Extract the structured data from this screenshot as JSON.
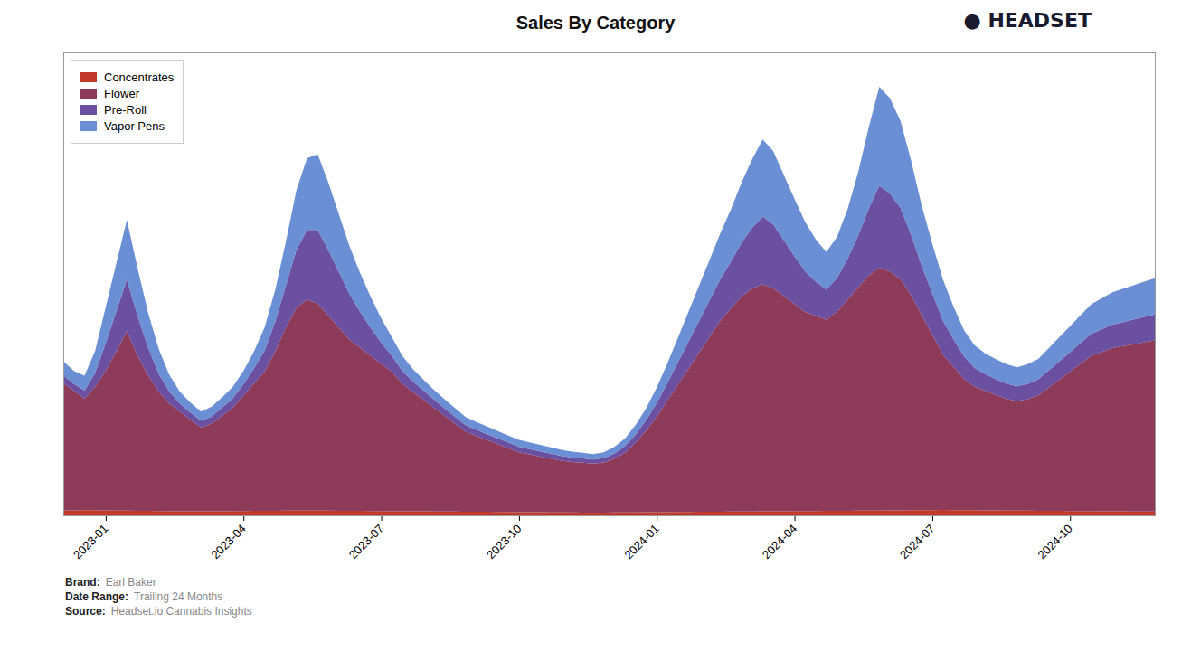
{
  "chart_data": {
    "type": "area",
    "title": "Sales By Category",
    "stacked": true,
    "grid": false,
    "legend": "upper left",
    "tick_labels": "x",
    "ylim": [
      0,
      11622.96
    ],
    "categories": [
      null,
      null,
      null,
      null,
      "2023-01",
      null,
      null,
      null,
      null,
      null,
      null,
      null,
      null,
      null,
      null,
      null,
      null,
      "2023-04",
      null,
      null,
      null,
      null,
      null,
      null,
      null,
      null,
      null,
      null,
      null,
      null,
      "2023-07",
      null,
      null,
      null,
      null,
      null,
      null,
      null,
      null,
      null,
      null,
      null,
      null,
      "2023-10",
      null,
      null,
      null,
      null,
      null,
      null,
      null,
      null,
      null,
      null,
      null,
      null,
      "2024-01",
      null,
      null,
      null,
      null,
      null,
      null,
      null,
      null,
      null,
      null,
      null,
      null,
      "2024-04",
      null,
      null,
      null,
      null,
      null,
      null,
      null,
      null,
      null,
      null,
      null,
      null,
      "2024-07",
      null,
      null,
      null,
      null,
      null,
      null,
      null,
      null,
      null,
      null,
      null,
      null,
      "2024-10",
      null,
      null,
      null,
      null,
      null,
      null,
      null,
      null
    ],
    "series": [
      {
        "name": "Concentrates",
        "color": "#c0392b",
        "values": [
          120,
          125,
          130,
          128,
          125,
          122,
          118,
          115,
          112,
          110,
          108,
          105,
          103,
          100,
          102,
          105,
          107,
          109,
          111,
          113,
          115,
          117,
          118,
          119,
          118,
          117,
          115,
          113,
          111,
          109,
          107,
          105,
          103,
          101,
          100,
          98,
          96,
          94,
          92,
          90,
          88,
          86,
          84,
          82,
          80,
          78,
          76,
          74,
          72,
          70,
          68,
          70,
          72,
          74,
          76,
          78,
          80,
          82,
          84,
          86,
          88,
          90,
          92,
          94,
          96,
          98,
          100,
          102,
          104,
          106,
          108,
          110,
          112,
          114,
          116,
          118,
          120,
          122,
          124,
          126,
          128,
          130,
          132,
          134,
          132,
          130,
          128,
          126,
          124,
          122,
          120,
          118,
          116,
          114,
          112,
          110,
          108,
          106,
          104,
          102,
          100,
          98,
          96,
          94
        ]
      },
      {
        "name": "Flower",
        "color": "#8e3a59",
        "values": [
          3200,
          3000,
          2800,
          3100,
          3500,
          4000,
          4500,
          3900,
          3400,
          3000,
          2700,
          2500,
          2300,
          2100,
          2200,
          2400,
          2600,
          2900,
          3200,
          3500,
          4000,
          4600,
          5100,
          5300,
          5200,
          4900,
          4600,
          4300,
          4100,
          3900,
          3700,
          3500,
          3200,
          3000,
          2800,
          2600,
          2400,
          2200,
          2000,
          1900,
          1800,
          1700,
          1600,
          1500,
          1450,
          1400,
          1350,
          1300,
          1270,
          1250,
          1230,
          1260,
          1350,
          1500,
          1750,
          2050,
          2400,
          2800,
          3200,
          3600,
          4000,
          4400,
          4800,
          5100,
          5400,
          5600,
          5700,
          5600,
          5400,
          5200,
          5000,
          4900,
          4800,
          5000,
          5300,
          5600,
          5900,
          6100,
          6000,
          5800,
          5400,
          4900,
          4400,
          3900,
          3600,
          3300,
          3100,
          3000,
          2900,
          2800,
          2750,
          2800,
          2900,
          3100,
          3300,
          3500,
          3700,
          3900,
          4000,
          4100,
          4150,
          4200,
          4250,
          4300
        ]
      },
      {
        "name": "Pre-Roll",
        "color": "#6b4fa0",
        "values": [
          200,
          180,
          200,
          350,
          700,
          1000,
          1300,
          1000,
          700,
          450,
          300,
          200,
          180,
          170,
          180,
          200,
          230,
          280,
          380,
          530,
          750,
          1050,
          1450,
          1750,
          1850,
          1650,
          1400,
          1150,
          900,
          700,
          530,
          400,
          320,
          260,
          230,
          200,
          185,
          175,
          165,
          158,
          152,
          147,
          142,
          137,
          132,
          127,
          122,
          117,
          112,
          108,
          104,
          110,
          130,
          160,
          200,
          260,
          340,
          440,
          560,
          680,
          800,
          920,
          1040,
          1180,
          1350,
          1520,
          1700,
          1600,
          1400,
          1200,
          1020,
          860,
          760,
          840,
          1020,
          1300,
          1680,
          2050,
          1960,
          1790,
          1520,
          1240,
          1040,
          860,
          690,
          560,
          470,
          420,
          400,
          385,
          370,
          385,
          400,
          430,
          460,
          490,
          520,
          550,
          570,
          590,
          605,
          620,
          635,
          650
        ]
      },
      {
        "name": "Vapor Pens",
        "color": "#6b8fd4",
        "values": [
          350,
          320,
          380,
          550,
          900,
          1200,
          1500,
          1200,
          880,
          620,
          420,
          300,
          250,
          235,
          248,
          265,
          290,
          340,
          430,
          580,
          800,
          1100,
          1500,
          1800,
          1900,
          1700,
          1450,
          1200,
          980,
          780,
          610,
          470,
          380,
          310,
          275,
          245,
          228,
          215,
          205,
          198,
          191,
          185,
          180,
          174,
          169,
          163,
          158,
          153,
          148,
          143,
          138,
          145,
          165,
          198,
          242,
          302,
          384,
          490,
          614,
          748,
          882,
          1016,
          1150,
          1310,
          1510,
          1720,
          1940,
          1840,
          1640,
          1440,
          1240,
          1060,
          940,
          1030,
          1250,
          1590,
          2040,
          2490,
          2390,
          2190,
          1860,
          1510,
          1250,
          1030,
          820,
          660,
          570,
          520,
          500,
          488,
          475,
          492,
          510,
          556,
          603,
          650,
          698,
          746,
          778,
          810,
          835,
          860,
          885,
          910
        ]
      }
    ],
    "annotations": [
      {
        "text": "● HEADSET"
      },
      {
        "label": "Brand:",
        "text": "Earl Baker"
      },
      {
        "label": "Date Range:",
        "text": "Trailing 24 Months"
      },
      {
        "label": "Source:",
        "text": "Headset.io Cannabis Insights"
      }
    ]
  }
}
